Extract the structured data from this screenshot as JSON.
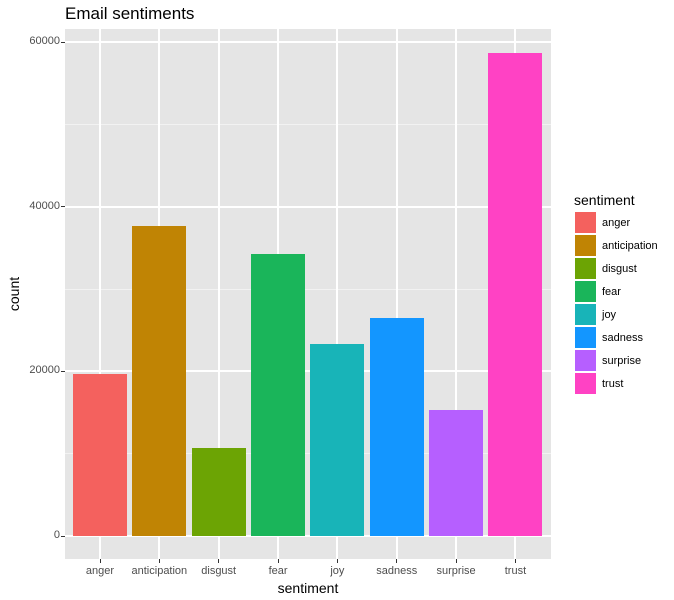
{
  "chart_data": {
    "type": "bar",
    "title": "Email sentiments",
    "xlabel": "sentiment",
    "ylabel": "count",
    "categories": [
      "anger",
      "anticipation",
      "disgust",
      "fear",
      "joy",
      "sadness",
      "surprise",
      "trust"
    ],
    "values": [
      19700,
      37700,
      10700,
      34300,
      23300,
      26500,
      15300,
      58700
    ],
    "colors": [
      "#F8766D",
      "#C49A00",
      "#53B400",
      "#00C094",
      "#00B6EB",
      "#06A4FF",
      "#A58AFF",
      "#FB61D7"
    ],
    "ylim": [
      0,
      60000
    ],
    "yticks": [
      0,
      20000,
      40000,
      60000
    ],
    "ytick_labels": [
      "0",
      "20000",
      "40000",
      "60000"
    ],
    "grid": true,
    "legend": {
      "title": "sentiment",
      "position": "right",
      "entries": [
        "anger",
        "anticipation",
        "disgust",
        "fear",
        "joy",
        "sadness",
        "surprise",
        "trust"
      ]
    }
  },
  "display_colors": {
    "anger": "#F4615E",
    "anticipation": "#C08404",
    "disgust": "#6CA404",
    "fear": "#1AB55A",
    "joy": "#18B4B8",
    "sadness": "#1396FF",
    "surprise": "#B65FFF",
    "trust": "#FF42C4"
  }
}
